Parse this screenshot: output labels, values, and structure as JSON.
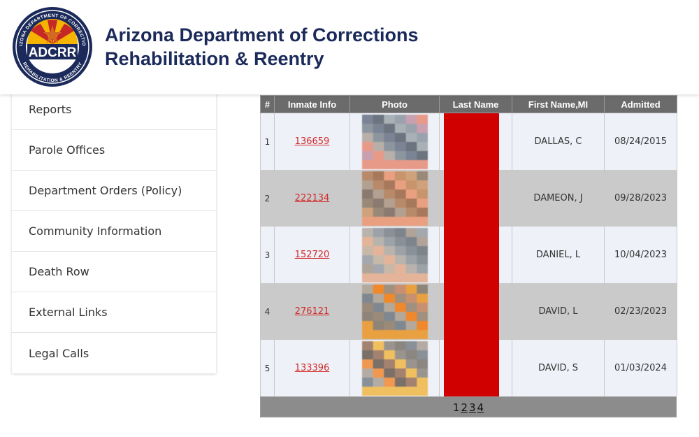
{
  "header": {
    "title_line1": "Arizona Department of Corrections",
    "title_line2": "Rehabilitation & Reentry",
    "logo_text": "ADCRR",
    "logo_ring_top": "ARIZONA DEPARTMENT OF CORRECTIONS",
    "logo_ring_bottom": "REHABILITATION & REENTRY"
  },
  "colors": {
    "brand_navy": "#1b2a5a",
    "link_red": "#d22a2a",
    "redaction": "#d10000",
    "table_header": "#6b6b6b"
  },
  "sidebar": {
    "items": [
      {
        "label": "Reports"
      },
      {
        "label": "Parole Offices"
      },
      {
        "label": "Department Orders (Policy)"
      },
      {
        "label": "Community Information"
      },
      {
        "label": "Death Row"
      },
      {
        "label": "External Links"
      },
      {
        "label": "Legal Calls"
      }
    ]
  },
  "table": {
    "headers": [
      "#",
      "Inmate Info",
      "Photo",
      "Last Name",
      "First Name,MI",
      "Admitted"
    ],
    "rows": [
      {
        "num": "1",
        "inmate": "136659",
        "first": "DALLAS, C",
        "admitted": "08/24/2015"
      },
      {
        "num": "2",
        "inmate": "222134",
        "first": "DAMEON, J",
        "admitted": "09/28/2023"
      },
      {
        "num": "3",
        "inmate": "152720",
        "first": "DANIEL, L",
        "admitted": "10/04/2023"
      },
      {
        "num": "4",
        "inmate": "276121",
        "first": "DAVID, L",
        "admitted": "02/23/2023"
      },
      {
        "num": "5",
        "inmate": "133396",
        "first": "DAVID, S",
        "admitted": "01/03/2024"
      }
    ]
  },
  "pager": {
    "current": "1",
    "pages": [
      "2",
      "3",
      "4"
    ]
  }
}
